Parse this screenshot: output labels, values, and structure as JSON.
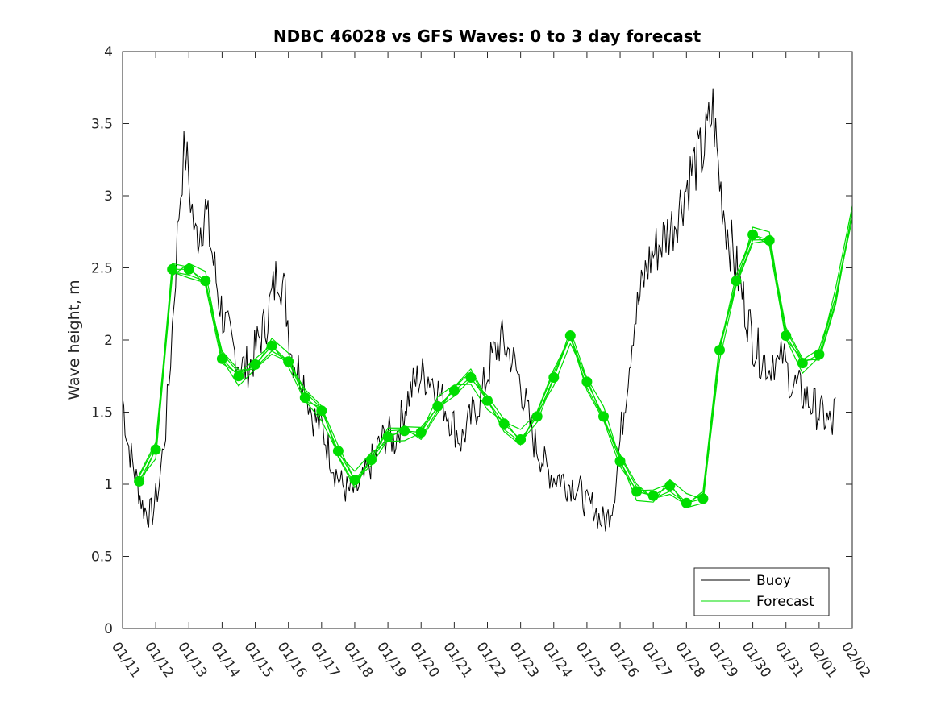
{
  "chart_data": {
    "type": "line",
    "title": "NDBC 46028 vs GFS Waves: 0 to 3 day forecast",
    "xlabel": "",
    "ylabel": "Wave height, m",
    "ylim": [
      0,
      4
    ],
    "xlim": [
      0,
      22
    ],
    "y_ticks": [
      0,
      0.5,
      1,
      1.5,
      2,
      2.5,
      3,
      3.5,
      4
    ],
    "y_tick_labels": [
      "0",
      "0.5",
      "1",
      "1.5",
      "2",
      "2.5",
      "3",
      "3.5",
      "4"
    ],
    "x_tick_labels": [
      "01/11",
      "01/12",
      "01/13",
      "01/14",
      "01/15",
      "01/16",
      "01/17",
      "01/18",
      "01/19",
      "01/20",
      "01/21",
      "01/22",
      "01/23",
      "01/24",
      "01/25",
      "01/26",
      "01/27",
      "01/28",
      "01/29",
      "01/30",
      "01/31",
      "02/01",
      "02/02"
    ],
    "legend": {
      "position": "bottom-right",
      "entries": [
        {
          "label": "Buoy",
          "color": "#000000"
        },
        {
          "label": "Forecast",
          "color": "#00dd00"
        }
      ]
    },
    "series": [
      {
        "name": "Buoy",
        "color": "#000000",
        "x": [
          0,
          0.15,
          0.3,
          0.45,
          0.6,
          0.75,
          0.9,
          1.0,
          1.1,
          1.2,
          1.3,
          1.4,
          1.5,
          1.6,
          1.7,
          1.8,
          1.9,
          2.0,
          2.1,
          2.2,
          2.35,
          2.5,
          2.7,
          2.9,
          3.1,
          3.3,
          3.5,
          3.7,
          3.9,
          4.1,
          4.3,
          4.5,
          4.7,
          4.9,
          5.1,
          5.3,
          5.5,
          5.6,
          5.7,
          5.8,
          6.0,
          6.2,
          6.4,
          6.6,
          6.8,
          7.0,
          7.2,
          7.4,
          7.6,
          7.8,
          8.0,
          8.2,
          8.4,
          8.6,
          8.8,
          9.0,
          9.3,
          9.6,
          9.9,
          10.2,
          10.5,
          10.8,
          11.1,
          11.4,
          11.7,
          12.0,
          12.2,
          12.4,
          12.6,
          12.8,
          13.0,
          13.2,
          13.4,
          13.6,
          13.8,
          14.0,
          14.2,
          14.4,
          14.6,
          14.8,
          15.0,
          15.2,
          15.4,
          15.6,
          15.8,
          16.0,
          16.3,
          16.6,
          16.9,
          17.2,
          17.5,
          17.8,
          18.0,
          18.2,
          18.4,
          18.6,
          18.8,
          19.0,
          19.2,
          19.4,
          19.5,
          19.6,
          19.7,
          19.8,
          19.9,
          20.0,
          20.1,
          20.2,
          20.4,
          20.6,
          20.8,
          21.0,
          21.2,
          21.4,
          21.5
        ],
        "y": [
          1.6,
          1.3,
          1.15,
          1.0,
          0.85,
          0.8,
          0.8,
          0.9,
          1.0,
          1.2,
          1.4,
          1.7,
          2.1,
          2.5,
          2.9,
          3.2,
          3.3,
          3.1,
          2.9,
          2.7,
          2.8,
          2.9,
          2.6,
          2.3,
          2.1,
          1.95,
          1.85,
          1.8,
          1.85,
          2.0,
          2.1,
          2.3,
          2.5,
          2.3,
          1.9,
          1.8,
          1.7,
          1.6,
          1.5,
          1.45,
          1.4,
          1.25,
          1.1,
          1.0,
          0.95,
          0.95,
          1.0,
          1.1,
          1.2,
          1.3,
          1.35,
          1.3,
          1.45,
          1.6,
          1.7,
          1.75,
          1.75,
          1.6,
          1.45,
          1.3,
          1.45,
          1.6,
          1.85,
          2.0,
          1.9,
          1.7,
          1.5,
          1.3,
          1.2,
          1.1,
          1.05,
          1.05,
          1.0,
          1.0,
          0.95,
          0.85,
          0.85,
          0.75,
          0.75,
          0.9,
          1.3,
          1.7,
          2.1,
          2.3,
          2.5,
          2.6,
          2.7,
          2.8,
          3.0,
          3.2,
          3.3,
          3.6,
          3.1,
          2.8,
          2.6,
          2.4,
          2.2,
          2.0,
          1.9,
          1.85,
          1.8,
          1.9,
          1.85,
          1.8,
          1.9,
          1.8,
          1.75,
          1.7,
          1.65,
          1.6,
          1.55,
          1.5,
          1.45,
          1.4,
          1.6
        ]
      },
      {
        "name": "Forecast",
        "color": "#00dd00",
        "x": [
          0.5,
          1.0,
          1.5,
          2.0,
          2.5,
          3.0,
          3.5,
          4.0,
          4.5,
          5.0,
          5.5,
          6.0,
          6.5,
          7.0,
          7.5,
          8.0,
          8.5,
          9.0,
          9.5,
          10.0,
          10.5,
          11.0,
          11.5,
          12.0,
          12.5,
          13.0,
          13.5,
          14.0,
          14.5,
          15.0,
          15.5,
          16.0,
          16.5,
          17.0,
          17.5,
          18.0,
          18.5,
          19.0,
          19.5,
          20.0,
          20.5,
          21.0,
          21.5,
          22.0
        ],
        "y": [
          1.02,
          1.24,
          2.49,
          2.49,
          2.41,
          1.87,
          1.75,
          1.83,
          1.96,
          1.85,
          1.6,
          1.51,
          1.23,
          1.03,
          1.17,
          1.33,
          1.37,
          1.36,
          1.54,
          1.65,
          1.74,
          1.58,
          1.42,
          1.31,
          1.47,
          1.74,
          2.03,
          1.71,
          1.47,
          1.16,
          0.95,
          0.92,
          0.99,
          0.87,
          0.9,
          1.93,
          2.41,
          2.73,
          2.69,
          2.03,
          1.84,
          1.9,
          2.3,
          2.88
        ],
        "markers": [
          [
            0.5,
            1.02
          ],
          [
            1.0,
            1.24
          ],
          [
            1.5,
            2.49
          ],
          [
            2.0,
            2.49
          ],
          [
            2.5,
            2.41
          ],
          [
            3.0,
            1.87
          ],
          [
            3.5,
            1.75
          ],
          [
            4.0,
            1.83
          ],
          [
            4.5,
            1.96
          ],
          [
            5.0,
            1.85
          ],
          [
            5.5,
            1.6
          ],
          [
            6.0,
            1.51
          ],
          [
            6.5,
            1.23
          ],
          [
            7.0,
            1.03
          ],
          [
            7.5,
            1.17
          ],
          [
            8.0,
            1.33
          ],
          [
            8.5,
            1.37
          ],
          [
            9.0,
            1.36
          ],
          [
            9.5,
            1.54
          ],
          [
            10.0,
            1.65
          ],
          [
            10.5,
            1.74
          ],
          [
            11.0,
            1.58
          ],
          [
            11.5,
            1.42
          ],
          [
            12.0,
            1.31
          ],
          [
            12.5,
            1.47
          ],
          [
            13.0,
            1.74
          ],
          [
            13.5,
            2.03
          ],
          [
            14.0,
            1.71
          ],
          [
            14.5,
            1.47
          ],
          [
            15.0,
            1.16
          ],
          [
            15.5,
            0.95
          ],
          [
            16.0,
            0.92
          ],
          [
            16.5,
            0.99
          ],
          [
            17.0,
            0.87
          ],
          [
            17.5,
            0.9
          ],
          [
            18.0,
            1.93
          ],
          [
            18.5,
            2.41
          ],
          [
            19.0,
            2.73
          ],
          [
            19.5,
            2.69
          ],
          [
            20.0,
            2.03
          ],
          [
            20.5,
            1.84
          ],
          [
            21.0,
            1.9
          ]
        ]
      }
    ]
  }
}
